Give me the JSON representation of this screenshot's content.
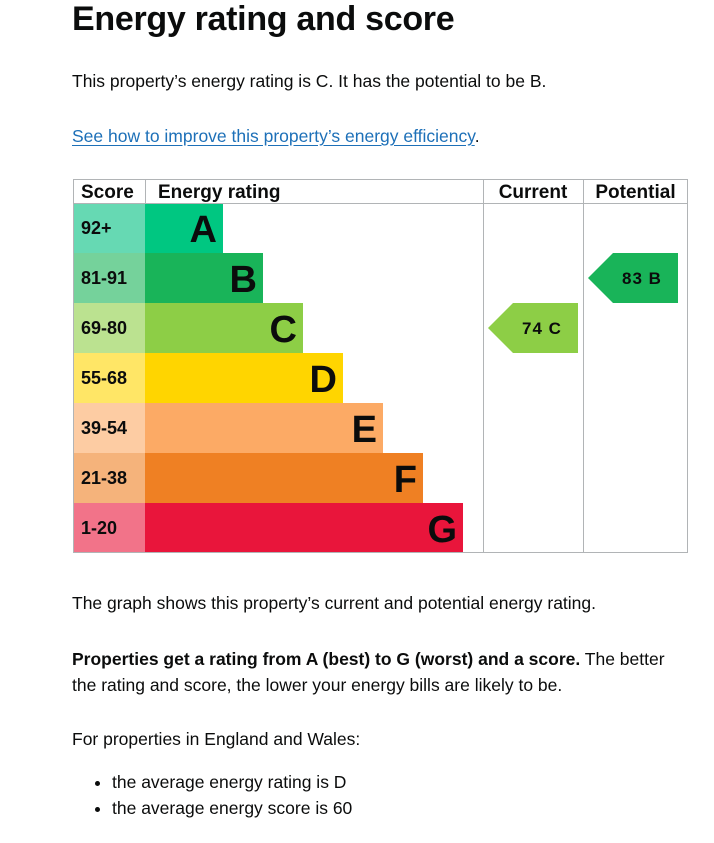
{
  "page": {
    "title": "Energy rating and score",
    "intro": "This property’s energy rating is C. It has the potential to be B.",
    "improve_link": "See how to improve this property’s energy efficiency",
    "improve_link_suffix": ".",
    "graph_caption": "The graph shows this property’s current and potential energy rating.",
    "rating_explanation_bold": "Properties get a rating from A (best) to G (worst) and a score.",
    "rating_explanation_rest": " The better the rating and score, the lower your energy bills are likely to be.",
    "averages_intro": "For properties in England and Wales:",
    "averages": [
      "the average energy rating is D",
      "the average energy score is 60"
    ]
  },
  "chart_data": {
    "type": "bar",
    "headers": {
      "score": "Score",
      "rating": "Energy rating",
      "current": "Current",
      "potential": "Potential"
    },
    "bands": [
      {
        "score": "92+",
        "letter": "A",
        "color": "#00c781",
        "light": "#66d9b3"
      },
      {
        "score": "81-91",
        "letter": "B",
        "color": "#19b459",
        "light": "#75d29b"
      },
      {
        "score": "69-80",
        "letter": "C",
        "color": "#8dce46",
        "light": "#bbe290"
      },
      {
        "score": "55-68",
        "letter": "D",
        "color": "#ffd500",
        "light": "#ffe666"
      },
      {
        "score": "39-54",
        "letter": "E",
        "color": "#fcaa65",
        "light": "#fdcca3"
      },
      {
        "score": "21-38",
        "letter": "F",
        "color": "#ef8023",
        "light": "#f5b37b"
      },
      {
        "score": "1-20",
        "letter": "G",
        "color": "#e9153b",
        "light": "#f27389"
      }
    ],
    "current": {
      "score": "74",
      "letter": "C"
    },
    "potential": {
      "score": "83",
      "letter": "B"
    }
  }
}
